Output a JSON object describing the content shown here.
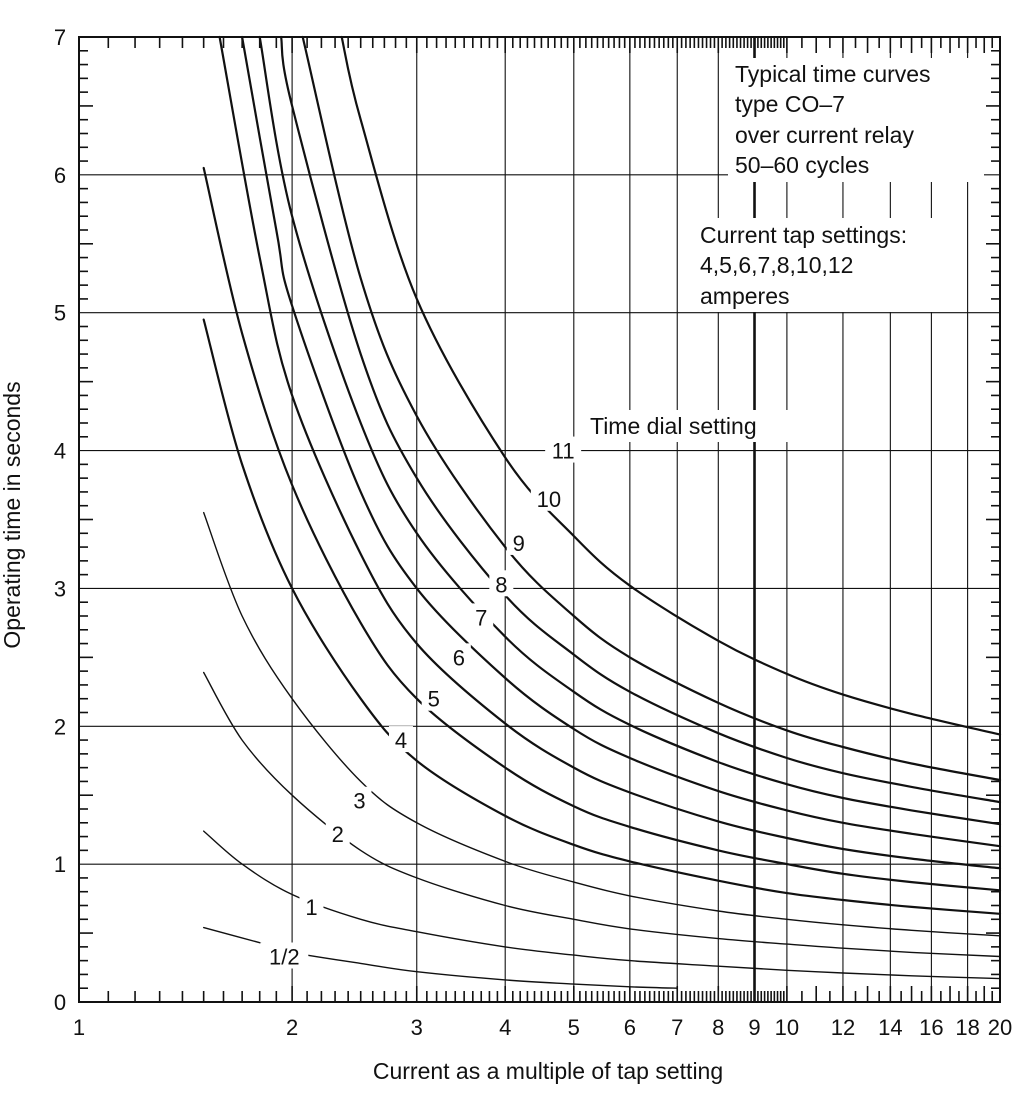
{
  "chart_data": {
    "type": "line",
    "xscale": "log",
    "xlim": [
      1,
      20
    ],
    "ylim": [
      0,
      7
    ],
    "xlabel": "Current as a multiple of tap setting",
    "ylabel": "Operating time in seconds",
    "x_ticks": [
      1,
      2,
      3,
      4,
      5,
      6,
      7,
      8,
      9,
      10,
      12,
      14,
      16,
      18,
      20
    ],
    "x_tick_labels": [
      "1",
      "2",
      "3",
      "4",
      "5",
      "6",
      "7",
      "8",
      "9",
      "10",
      "12",
      "14",
      "16",
      "18",
      "20"
    ],
    "y_ticks": [
      0,
      1,
      2,
      3,
      4,
      5,
      6,
      7
    ],
    "y_tick_labels": [
      "0",
      "1",
      "2",
      "3",
      "4",
      "5",
      "6",
      "7"
    ],
    "grid": true,
    "annotations": {
      "title_lines": [
        "Typical time curves",
        "type CO–7",
        "over current relay",
        "50–60 cycles"
      ],
      "tap_lines": [
        "Current tap settings:",
        "4,5,6,7,8,10,12",
        "amperes"
      ],
      "dial_label": "Time dial setting"
    },
    "series": [
      {
        "label": "1/2",
        "x": [
          1.5,
          1.8,
          2.0,
          2.5,
          3.0,
          4.0,
          5.0,
          6.0,
          7.0
        ],
        "y": [
          0.54,
          0.43,
          0.36,
          0.28,
          0.22,
          0.16,
          0.13,
          0.11,
          0.1
        ]
      },
      {
        "label": "1",
        "x": [
          1.5,
          1.7,
          2.0,
          2.5,
          3.0,
          4.0,
          5.0,
          6.0,
          8.0,
          10.0,
          12.0,
          15.0,
          20.0
        ],
        "y": [
          1.24,
          1.0,
          0.78,
          0.6,
          0.51,
          0.4,
          0.34,
          0.3,
          0.26,
          0.23,
          0.21,
          0.19,
          0.17
        ]
      },
      {
        "label": "2",
        "x": [
          1.5,
          1.7,
          2.0,
          2.5,
          3.0,
          4.0,
          5.0,
          6.0,
          8.0,
          10.0,
          12.0,
          15.0,
          20.0
        ],
        "y": [
          2.39,
          1.9,
          1.5,
          1.1,
          0.9,
          0.7,
          0.6,
          0.53,
          0.46,
          0.42,
          0.39,
          0.36,
          0.33
        ]
      },
      {
        "label": "3",
        "x": [
          1.5,
          1.7,
          2.0,
          2.5,
          3.0,
          4.0,
          5.0,
          6.0,
          8.0,
          10.0,
          12.0,
          15.0,
          20.0
        ],
        "y": [
          3.55,
          2.8,
          2.2,
          1.6,
          1.3,
          1.02,
          0.87,
          0.77,
          0.66,
          0.6,
          0.56,
          0.52,
          0.48
        ]
      },
      {
        "label": "4",
        "x": [
          1.5,
          1.7,
          2.0,
          2.5,
          3.0,
          4.0,
          5.0,
          6.0,
          8.0,
          10.0,
          12.0,
          15.0,
          20.0
        ],
        "y": [
          4.95,
          3.9,
          3.0,
          2.2,
          1.75,
          1.35,
          1.14,
          1.02,
          0.88,
          0.79,
          0.74,
          0.69,
          0.64
        ]
      },
      {
        "label": "5",
        "x": [
          1.5,
          1.7,
          2.0,
          2.5,
          3.0,
          4.0,
          5.0,
          6.0,
          8.0,
          10.0,
          12.0,
          15.0,
          20.0
        ],
        "y": [
          6.05,
          4.85,
          3.75,
          2.75,
          2.2,
          1.7,
          1.42,
          1.27,
          1.1,
          1.0,
          0.93,
          0.87,
          0.81
        ]
      },
      {
        "label": "6",
        "x": [
          1.58,
          1.8,
          2.0,
          2.5,
          3.0,
          4.0,
          5.0,
          6.0,
          8.0,
          10.0,
          12.0,
          15.0,
          20.0
        ],
        "y": [
          7.0,
          5.4,
          4.4,
          3.25,
          2.6,
          2.02,
          1.7,
          1.52,
          1.31,
          1.19,
          1.11,
          1.04,
          0.97
        ]
      },
      {
        "label": "7",
        "x": [
          1.7,
          1.9,
          2.0,
          2.5,
          3.0,
          4.0,
          5.0,
          6.0,
          8.0,
          10.0,
          12.0,
          15.0,
          20.0
        ],
        "y": [
          7.0,
          5.6,
          5.05,
          3.7,
          3.0,
          2.35,
          1.98,
          1.77,
          1.53,
          1.39,
          1.3,
          1.22,
          1.13
        ]
      },
      {
        "label": "8",
        "x": [
          1.8,
          2.0,
          2.5,
          3.0,
          4.0,
          5.0,
          6.0,
          8.0,
          10.0,
          12.0,
          15.0,
          20.0
        ],
        "y": [
          7.0,
          5.7,
          4.2,
          3.4,
          2.65,
          2.25,
          2.01,
          1.74,
          1.58,
          1.48,
          1.39,
          1.29
        ]
      },
      {
        "label": "9",
        "x": [
          1.93,
          2.0,
          2.5,
          3.0,
          4.0,
          5.0,
          6.0,
          8.0,
          10.0,
          12.0,
          15.0,
          20.0
        ],
        "y": [
          7.0,
          6.5,
          4.7,
          3.8,
          2.95,
          2.52,
          2.25,
          1.95,
          1.77,
          1.66,
          1.56,
          1.45
        ]
      },
      {
        "label": "10",
        "x": [
          2.07,
          2.5,
          3.0,
          4.0,
          5.0,
          6.0,
          8.0,
          10.0,
          12.0,
          15.0,
          20.0
        ],
        "y": [
          7.0,
          5.25,
          4.25,
          3.3,
          2.8,
          2.5,
          2.17,
          1.97,
          1.85,
          1.73,
          1.61
        ]
      },
      {
        "label": "11",
        "x": [
          2.35,
          2.5,
          3.0,
          4.0,
          5.0,
          6.0,
          8.0,
          10.0,
          12.0,
          15.0,
          20.0
        ],
        "y": [
          7.0,
          6.4,
          5.1,
          3.95,
          3.38,
          3.02,
          2.62,
          2.38,
          2.23,
          2.09,
          1.94
        ]
      }
    ],
    "curve_label_positions": [
      {
        "label": "1/2",
        "x": 1.95,
        "y": 0.33
      },
      {
        "label": "1",
        "x": 2.13,
        "y": 0.69
      },
      {
        "label": "2",
        "x": 2.32,
        "y": 1.22
      },
      {
        "label": "3",
        "x": 2.49,
        "y": 1.46
      },
      {
        "label": "4",
        "x": 2.85,
        "y": 1.9
      },
      {
        "label": "5",
        "x": 3.17,
        "y": 2.2
      },
      {
        "label": "6",
        "x": 3.44,
        "y": 2.5
      },
      {
        "label": "7",
        "x": 3.7,
        "y": 2.79
      },
      {
        "label": "8",
        "x": 3.95,
        "y": 3.03
      },
      {
        "label": "9",
        "x": 4.18,
        "y": 3.33
      },
      {
        "label": "10",
        "x": 4.61,
        "y": 3.65
      },
      {
        "label": "11",
        "x": 4.83,
        "y": 4.0
      }
    ]
  }
}
